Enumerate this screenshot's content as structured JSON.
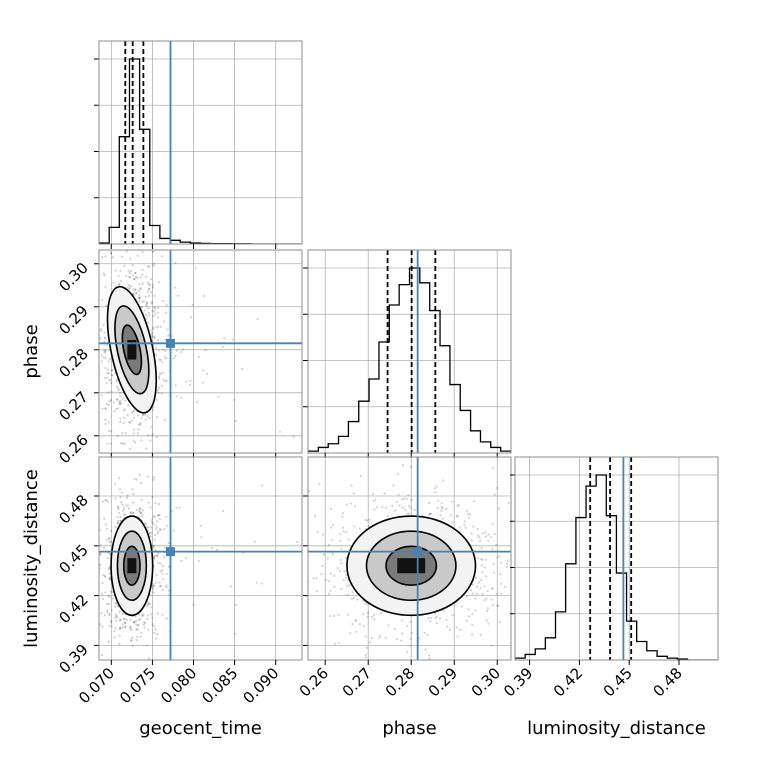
{
  "chart_data": {
    "type": "corner",
    "parameters": [
      "geocent_time",
      "phase",
      "luminosity_distance"
    ],
    "truths": {
      "geocent_time": 0.0772,
      "phase": 0.2815,
      "luminosity_distance": 0.4465
    },
    "quantiles": {
      "geocent_time": [
        0.0717,
        0.0726,
        0.0739
      ],
      "phase": [
        0.2745,
        0.2801,
        0.2856
      ],
      "luminosity_distance": [
        0.4265,
        0.4385,
        0.4512
      ]
    },
    "axes": {
      "geocent_time": {
        "ticks": [
          0.07,
          0.075,
          0.08,
          0.085,
          0.09
        ],
        "tick_labels": [
          "0.070",
          "0.075",
          "0.080",
          "0.085",
          "0.090"
        ],
        "range": [
          0.0685,
          0.0932
        ]
      },
      "phase": {
        "ticks": [
          0.26,
          0.27,
          0.28,
          0.29,
          0.3
        ],
        "tick_labels": [
          "0.26",
          "0.27",
          "0.28",
          "0.29",
          "0.30"
        ],
        "range": [
          0.256,
          0.3032
        ]
      },
      "luminosity_distance": {
        "ticks": [
          0.39,
          0.42,
          0.45,
          0.48
        ],
        "tick_labels": [
          "0.39",
          "0.42",
          "0.45",
          "0.48"
        ],
        "range": [
          0.3812,
          0.5035
        ]
      }
    },
    "histograms": {
      "geocent_time": {
        "edges": [
          0.0685,
          0.06974,
          0.07097,
          0.07221,
          0.07344,
          0.07468,
          0.07591,
          0.07715,
          0.07838,
          0.07962,
          0.08085,
          0.08209,
          0.08332,
          0.08456,
          0.08579,
          0.08703,
          0.08826,
          0.0895,
          0.09073,
          0.09197,
          0.0932
        ],
        "counts": [
          0.5,
          9,
          58,
          100,
          62,
          10,
          3,
          2,
          1,
          0.5,
          0.3,
          0.2,
          0.2,
          0.1,
          0.1,
          0,
          0,
          0,
          0,
          0
        ]
      },
      "phase": {
        "edges": [
          0.256,
          0.2584,
          0.2607,
          0.2631,
          0.2654,
          0.2678,
          0.2702,
          0.2725,
          0.2749,
          0.2772,
          0.2796,
          0.282,
          0.2843,
          0.2867,
          0.289,
          0.2914,
          0.2938,
          0.2961,
          0.2985,
          0.3008,
          0.3032
        ],
        "counts": [
          1,
          3,
          5,
          9,
          17,
          28,
          40,
          60,
          80,
          91,
          100,
          92,
          77,
          58,
          37,
          23,
          12,
          6,
          3,
          1
        ]
      },
      "luminosity_distance": {
        "edges": [
          0.3812,
          0.3873,
          0.3934,
          0.3995,
          0.4056,
          0.4117,
          0.4179,
          0.424,
          0.4301,
          0.4362,
          0.4423,
          0.4484,
          0.4545,
          0.4606,
          0.4668,
          0.4729,
          0.479,
          0.4851,
          0.4912,
          0.4973,
          0.5035
        ],
        "counts": [
          1,
          3,
          6,
          12,
          26,
          52,
          77,
          94,
          100,
          78,
          47,
          21,
          10,
          5,
          2,
          1,
          0.5,
          0,
          0,
          0
        ]
      }
    },
    "joint": [
      {
        "x": "geocent_time",
        "y": "phase",
        "mean": [
          0.0725,
          0.28
        ],
        "sd": [
          0.0011,
          0.0065
        ]
      },
      {
        "x": "geocent_time",
        "y": "luminosity_distance",
        "mean": [
          0.0725,
          0.438
        ],
        "sd": [
          0.0011,
          0.013
        ]
      },
      {
        "x": "phase",
        "y": "luminosity_distance",
        "mean": [
          0.28,
          0.438
        ],
        "sd": [
          0.0065,
          0.013
        ]
      }
    ],
    "colors": {
      "truth": "#4682b4",
      "hist": "#000000",
      "grid": "#b0b0b0",
      "spine": "#8c8c8c"
    },
    "grid": true
  }
}
